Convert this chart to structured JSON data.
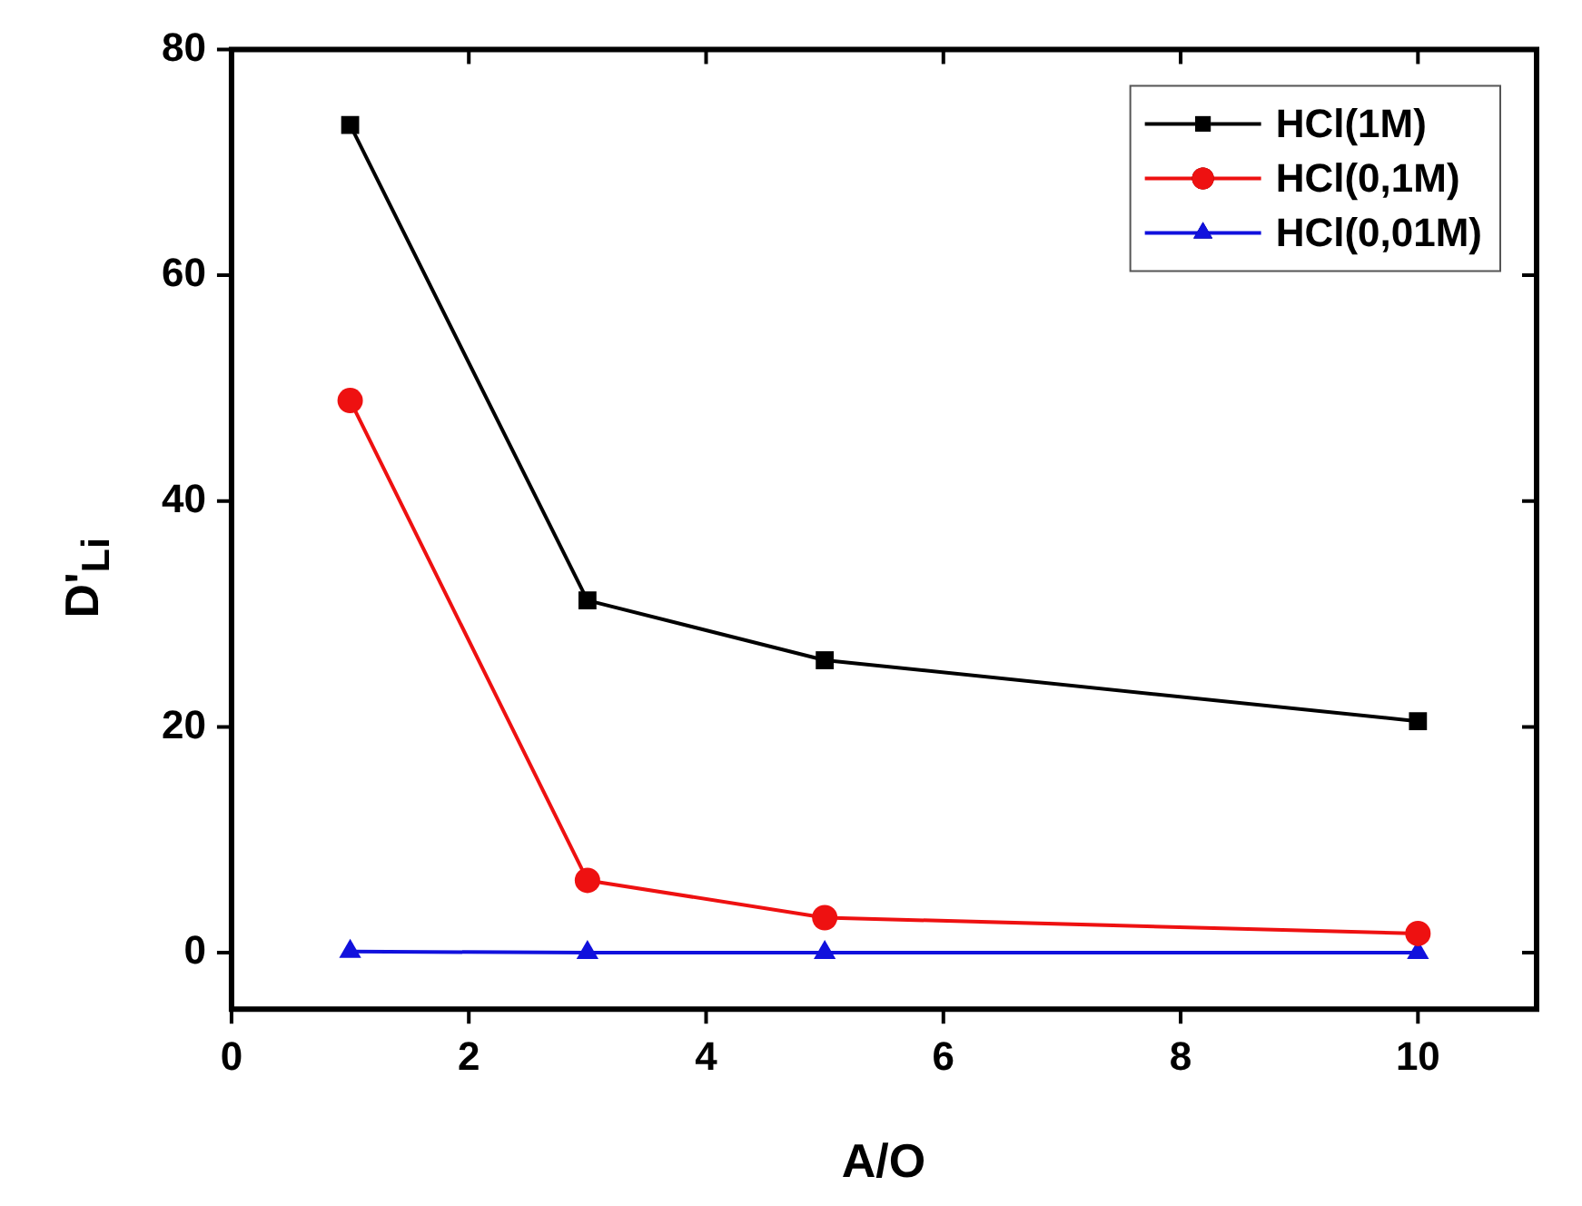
{
  "chart_data": {
    "type": "line",
    "xlabel": "A/O",
    "ylabel": "D'$_{Li}$",
    "x": [
      1,
      3,
      5,
      10
    ],
    "series": [
      {
        "name": "HCl(1M)",
        "color": "#000000",
        "marker": "square",
        "values": [
          73.3,
          31.2,
          25.9,
          20.5
        ]
      },
      {
        "name": "HCl(0,1M)",
        "color": "#ee1111",
        "marker": "circle",
        "values": [
          48.9,
          6.4,
          3.1,
          1.7
        ]
      },
      {
        "name": "HCl(0,01M)",
        "color": "#1111dd",
        "marker": "triangle",
        "values": [
          0.1,
          0,
          0,
          0
        ]
      }
    ],
    "xlim": [
      0,
      11
    ],
    "xticks": [
      0,
      2,
      4,
      6,
      8,
      10
    ],
    "ylim": [
      -5,
      80
    ],
    "yticks": [
      0,
      20,
      40,
      60,
      80
    ],
    "grid": false,
    "legend": "top right",
    "line_style": "solid"
  }
}
